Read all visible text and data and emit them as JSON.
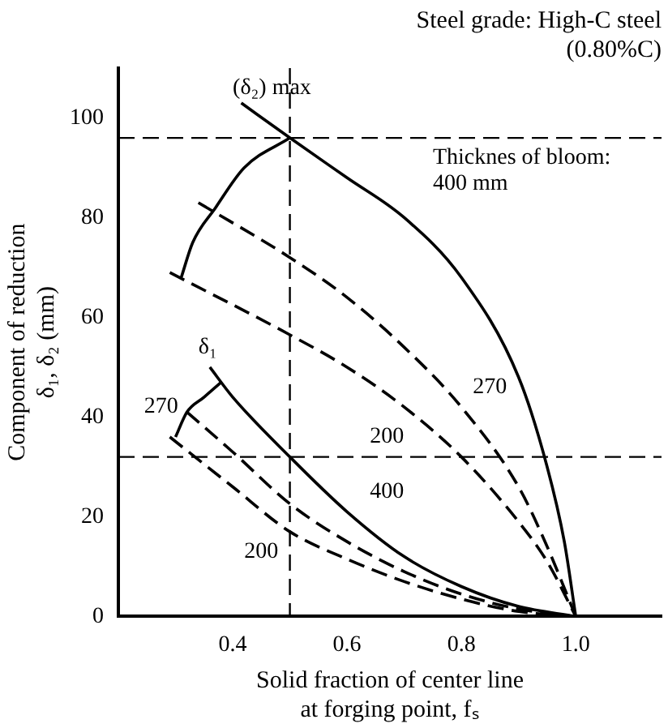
{
  "chart_data": {
    "type": "line",
    "title": "Steel grade: High-C steel",
    "subtitle": "(0.80%C)",
    "xlabel": "Solid fraction of center line\nat forging point, fₛ",
    "ylabel": "Component of reduction\nδ₁, δ₂ (mm)",
    "xlim": [
      0.2,
      1.15
    ],
    "xticks": [
      0.4,
      0.6,
      0.8,
      {
        "value": 1,
        "label": "1.0"
      }
    ],
    "ylim": [
      0,
      110
    ],
    "yticks": [
      0,
      20,
      40,
      60,
      80,
      100
    ],
    "grid": false,
    "legend": false,
    "marker": "none",
    "series": [
      {
        "color": "#000000",
        "line_style": "solid",
        "x": [
          0.415,
          0.5,
          0.6,
          0.7,
          0.8,
          0.9,
          0.95,
          0.98,
          1.0
        ],
        "values": [
          103,
          96,
          88,
          80,
          68,
          48,
          30,
          15,
          0
        ]
      },
      {
        "color": "#000000",
        "line_style": "dashed",
        "x": [
          0.34,
          0.5,
          0.6,
          0.7,
          0.8,
          0.9,
          0.95,
          1.0
        ],
        "values": [
          83,
          72,
          64,
          54,
          42,
          26,
          14,
          0
        ]
      },
      {
        "color": "#000000",
        "line_style": "dashed",
        "x": [
          0.29,
          0.5,
          0.6,
          0.7,
          0.8,
          0.9,
          0.95,
          1.0
        ],
        "values": [
          69,
          56.5,
          50,
          42,
          32,
          19,
          11,
          0
        ]
      },
      {
        "color": "#000000",
        "line_style": "solid",
        "x": [
          0.36,
          0.4,
          0.5,
          0.6,
          0.7,
          0.8,
          0.9,
          1.0
        ],
        "values": [
          50,
          44,
          32,
          21,
          12,
          6,
          2,
          0
        ]
      },
      {
        "color": "#000000",
        "line_style": "dashed",
        "x": [
          0.32,
          0.4,
          0.5,
          0.6,
          0.7,
          0.8,
          0.9,
          1.0
        ],
        "values": [
          41,
          33,
          22.6,
          15,
          9,
          4.5,
          1.5,
          0
        ]
      },
      {
        "color": "#000000",
        "line_style": "dashed",
        "x": [
          0.29,
          0.4,
          0.5,
          0.6,
          0.7,
          0.8,
          0.9,
          1.0
        ],
        "values": [
          36,
          26,
          17,
          11.5,
          7,
          3.5,
          1,
          0
        ]
      },
      {
        "color": "#000000",
        "line_style": "solid",
        "x": [
          0.5,
          0.42,
          0.37,
          0.33,
          0.31
        ],
        "values": [
          96,
          90,
          82,
          75,
          68
        ]
      },
      {
        "color": "#000000",
        "line_style": "solid",
        "x": [
          0.38,
          0.35,
          0.32,
          0.3
        ],
        "values": [
          47,
          44,
          41,
          36
        ]
      }
    ],
    "ref_lines": [
      {
        "axis": "y",
        "value": 96,
        "line_style": "dashed"
      },
      {
        "axis": "y",
        "value": 32,
        "line_style": "dashed"
      },
      {
        "axis": "x",
        "value": 0.5,
        "line_style": "dashed"
      }
    ],
    "annotations": [
      "(δ₂) max",
      "Thicknes of bloom:\n400 mm",
      "270",
      "200",
      "δ₁",
      "400",
      "270",
      "200"
    ]
  }
}
